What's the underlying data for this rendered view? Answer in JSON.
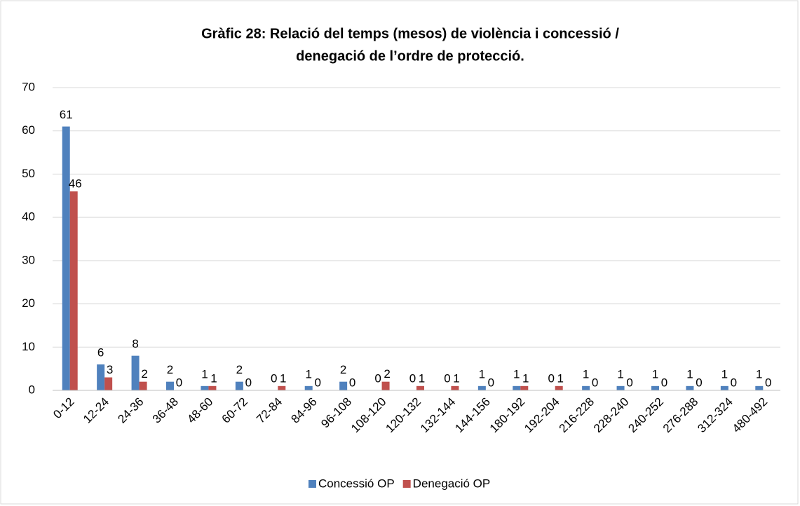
{
  "chart_data": {
    "type": "bar",
    "title": [
      "Gràfic 28: Relació del temps (mesos) de violència i concessió /",
      "denegació de l’ordre de protecció."
    ],
    "categories": [
      "0-12",
      "12-24",
      "24-36",
      "36-48",
      "48-60",
      "60-72",
      "72-84",
      "84-96",
      "96-108",
      "108-120",
      "120-132",
      "132-144",
      "144-156",
      "180-192",
      "192-204",
      "216-228",
      "228-240",
      "240-252",
      "276-288",
      "312-324",
      "480-492"
    ],
    "series": [
      {
        "name": "Concessió OP",
        "color": "#4f81bd",
        "values": [
          61,
          6,
          8,
          2,
          1,
          2,
          0,
          1,
          2,
          0,
          0,
          0,
          1,
          1,
          0,
          1,
          1,
          1,
          1,
          1,
          1
        ]
      },
      {
        "name": "Denegació OP",
        "color": "#c0504d",
        "values": [
          46,
          3,
          2,
          0,
          1,
          0,
          1,
          0,
          0,
          2,
          1,
          1,
          0,
          1,
          1,
          0,
          0,
          0,
          0,
          0,
          0
        ]
      }
    ],
    "ylim": [
      0,
      70
    ],
    "yticks": [
      0,
      10,
      20,
      30,
      40,
      50,
      60,
      70
    ],
    "grid": true,
    "legend": "bottom"
  }
}
